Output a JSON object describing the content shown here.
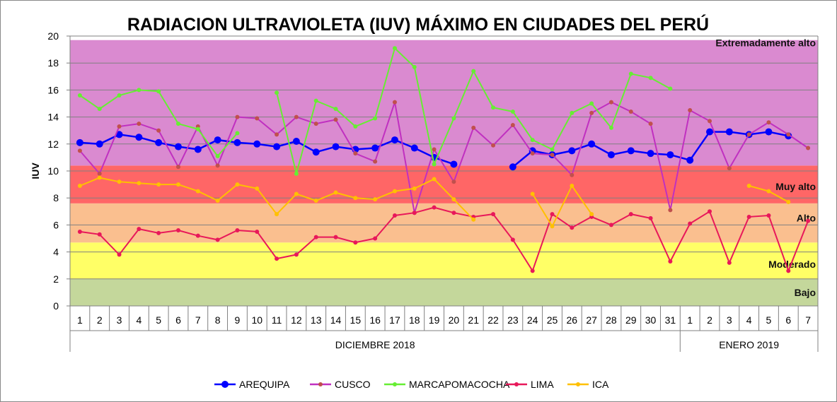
{
  "chart_data": {
    "type": "line",
    "title": "RADIACION ULTRAVIOLETA (IUV) MÁXIMO EN CIUDADES DEL PERÚ",
    "ylabel": "IUV",
    "xlabel": "",
    "ylim": [
      0,
      20
    ],
    "yticks": [
      "0",
      "2",
      "4",
      "6",
      "8",
      "10",
      "12",
      "14",
      "16",
      "18",
      "20"
    ],
    "categories": [
      "1",
      "2",
      "3",
      "4",
      "5",
      "6",
      "7",
      "8",
      "9",
      "10",
      "11",
      "12",
      "13",
      "14",
      "15",
      "16",
      "17",
      "18",
      "19",
      "20",
      "21",
      "22",
      "23",
      "24",
      "25",
      "26",
      "27",
      "28",
      "29",
      "30",
      "31",
      "1",
      "2",
      "3",
      "4",
      "5",
      "6",
      "7"
    ],
    "groups": [
      {
        "label": "DICIEMBRE 2018",
        "count": 31
      },
      {
        "label": "ENERO 2019",
        "count": 7
      }
    ],
    "bands": [
      {
        "label": "Bajo",
        "from": 0,
        "to": 2,
        "color": "#c4d79b"
      },
      {
        "label": "Moderado",
        "from": 2,
        "to": 4.7,
        "color": "#ffff66"
      },
      {
        "label": "Alto",
        "from": 4.7,
        "to": 7.6,
        "color": "#fabf8f"
      },
      {
        "label": "Muy alto",
        "from": 7.6,
        "to": 10.4,
        "color": "#ff6666"
      },
      {
        "label": "Extremadamente alto",
        "from": 10.4,
        "to": 19.7,
        "color": "#da8ad0"
      }
    ],
    "series": [
      {
        "name": "AREQUIPA",
        "color": "#0000ff",
        "marker": "#0000ff",
        "r": 5,
        "values": [
          12.1,
          12.0,
          12.7,
          12.5,
          12.1,
          11.8,
          11.6,
          12.3,
          12.1,
          12.0,
          11.8,
          12.2,
          11.4,
          11.8,
          11.6,
          11.7,
          12.3,
          11.7,
          11.0,
          10.5,
          null,
          null,
          10.3,
          11.5,
          11.2,
          11.5,
          12.0,
          11.2,
          11.5,
          11.3,
          11.2,
          10.8,
          12.9,
          12.9,
          12.7,
          12.9,
          12.6,
          null
        ]
      },
      {
        "name": "CUSCO",
        "color": "#c030c0",
        "marker": "#c0504d",
        "r": 3,
        "values": [
          11.5,
          9.8,
          13.3,
          13.5,
          13.0,
          10.3,
          13.3,
          10.4,
          14.0,
          13.9,
          12.7,
          14.0,
          13.5,
          13.8,
          11.3,
          10.7,
          15.1,
          6.9,
          11.6,
          9.2,
          13.2,
          11.9,
          13.4,
          11.3,
          11.2,
          9.7,
          14.3,
          15.1,
          14.4,
          13.5,
          7.1,
          14.5,
          13.7,
          10.2,
          12.7,
          13.6,
          12.7,
          11.7
        ]
      },
      {
        "name": "MARCAPOMACOCHA",
        "color": "#66ee33",
        "marker": "#66ee33",
        "r": 3,
        "values": [
          15.6,
          14.6,
          15.6,
          16.0,
          15.9,
          13.5,
          13.1,
          11.1,
          12.8,
          null,
          15.8,
          9.8,
          15.2,
          14.6,
          13.3,
          13.9,
          19.1,
          17.7,
          10.5,
          13.9,
          17.4,
          14.7,
          14.4,
          12.3,
          11.6,
          14.3,
          15.0,
          13.2,
          17.2,
          16.9,
          16.1,
          null,
          null,
          null,
          null,
          null,
          null,
          null
        ]
      },
      {
        "name": "LIMA",
        "color": "#e8185a",
        "marker": "#e8185a",
        "r": 3,
        "values": [
          5.5,
          5.3,
          3.8,
          5.7,
          5.4,
          5.6,
          5.2,
          4.9,
          5.6,
          5.5,
          3.5,
          3.8,
          5.1,
          5.1,
          4.7,
          5.0,
          6.7,
          6.9,
          7.3,
          6.9,
          6.6,
          6.8,
          4.9,
          2.6,
          6.8,
          5.8,
          6.6,
          6.0,
          6.8,
          6.5,
          3.3,
          6.1,
          7.0,
          3.2,
          6.6,
          6.7,
          2.6,
          6.3
        ]
      },
      {
        "name": "ICA",
        "color": "#ffc000",
        "marker": "#ffc000",
        "r": 3,
        "values": [
          8.9,
          9.5,
          9.2,
          9.1,
          9.0,
          9.0,
          8.5,
          7.8,
          9.0,
          8.7,
          6.8,
          8.3,
          7.8,
          8.4,
          8.0,
          7.9,
          8.5,
          8.7,
          9.4,
          7.9,
          6.4,
          null,
          null,
          8.3,
          5.9,
          8.9,
          6.8,
          null,
          null,
          null,
          null,
          null,
          null,
          null,
          8.9,
          8.5,
          7.7,
          null
        ]
      }
    ],
    "legend": "bottom",
    "grid": true
  }
}
